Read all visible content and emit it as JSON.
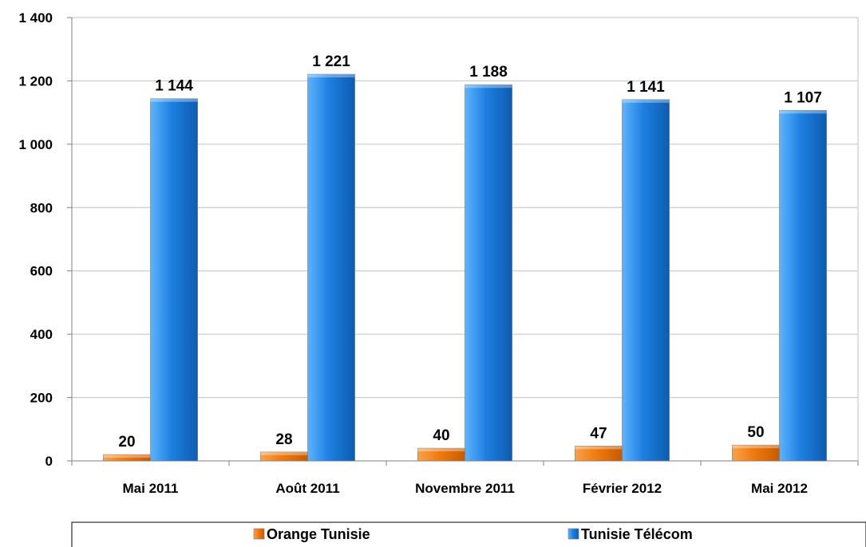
{
  "chart_data": {
    "type": "bar",
    "categories": [
      "Mai 2011",
      "Août 2011",
      "Novembre 2011",
      "Février 2012",
      "Mai 2012"
    ],
    "series": [
      {
        "name": "Orange Tunisie",
        "values": [
          20,
          28,
          40,
          47,
          50
        ],
        "labels": [
          "20",
          "28",
          "40",
          "47",
          "50"
        ],
        "color": "#F07A10"
      },
      {
        "name": "Tunisie Télécom",
        "values": [
          1144,
          1221,
          1188,
          1141,
          1107
        ],
        "labels": [
          "1 144",
          "1 221",
          "1 188",
          "1 141",
          "1 107"
        ],
        "color": "#1E7FE0"
      }
    ],
    "ylim": [
      0,
      1400
    ],
    "yticks": [
      0,
      200,
      400,
      600,
      800,
      1000,
      1200,
      1400
    ],
    "ytick_labels": [
      "0",
      "200",
      "400",
      "600",
      "800",
      "1 000",
      "1 200",
      "1 400"
    ],
    "grid": true,
    "legend_position": "bottom"
  }
}
